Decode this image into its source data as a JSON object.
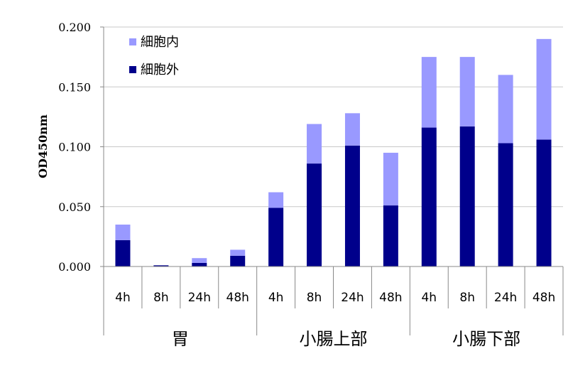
{
  "chart_data": {
    "type": "bar",
    "stacked": true,
    "ylabel": "OD450nm",
    "ylim": [
      0,
      0.2
    ],
    "yticks": [
      "0.000",
      "0.050",
      "0.100",
      "0.150",
      "0.200"
    ],
    "ytick_values": [
      0,
      0.05,
      0.1,
      0.15,
      0.2
    ],
    "grid": true,
    "legend_position": "top-left",
    "categories": [
      "4h",
      "8h",
      "24h",
      "48h",
      "4h",
      "8h",
      "24h",
      "48h",
      "4h",
      "8h",
      "24h",
      "48h"
    ],
    "groups": [
      {
        "label": "胃",
        "count": 4
      },
      {
        "label": "小腸上部",
        "count": 4
      },
      {
        "label": "小腸下部",
        "count": 4
      }
    ],
    "series": [
      {
        "name": "細胞外",
        "color": "#00008b",
        "values": [
          0.022,
          0.001,
          0.003,
          0.009,
          0.049,
          0.086,
          0.101,
          0.051,
          0.116,
          0.117,
          0.103,
          0.106
        ]
      },
      {
        "name": "細胞内",
        "color": "#9999ff",
        "values": [
          0.013,
          0.0,
          0.004,
          0.005,
          0.013,
          0.033,
          0.027,
          0.044,
          0.059,
          0.058,
          0.057,
          0.084
        ]
      }
    ],
    "legend_order": [
      "細胞内",
      "細胞外"
    ]
  }
}
